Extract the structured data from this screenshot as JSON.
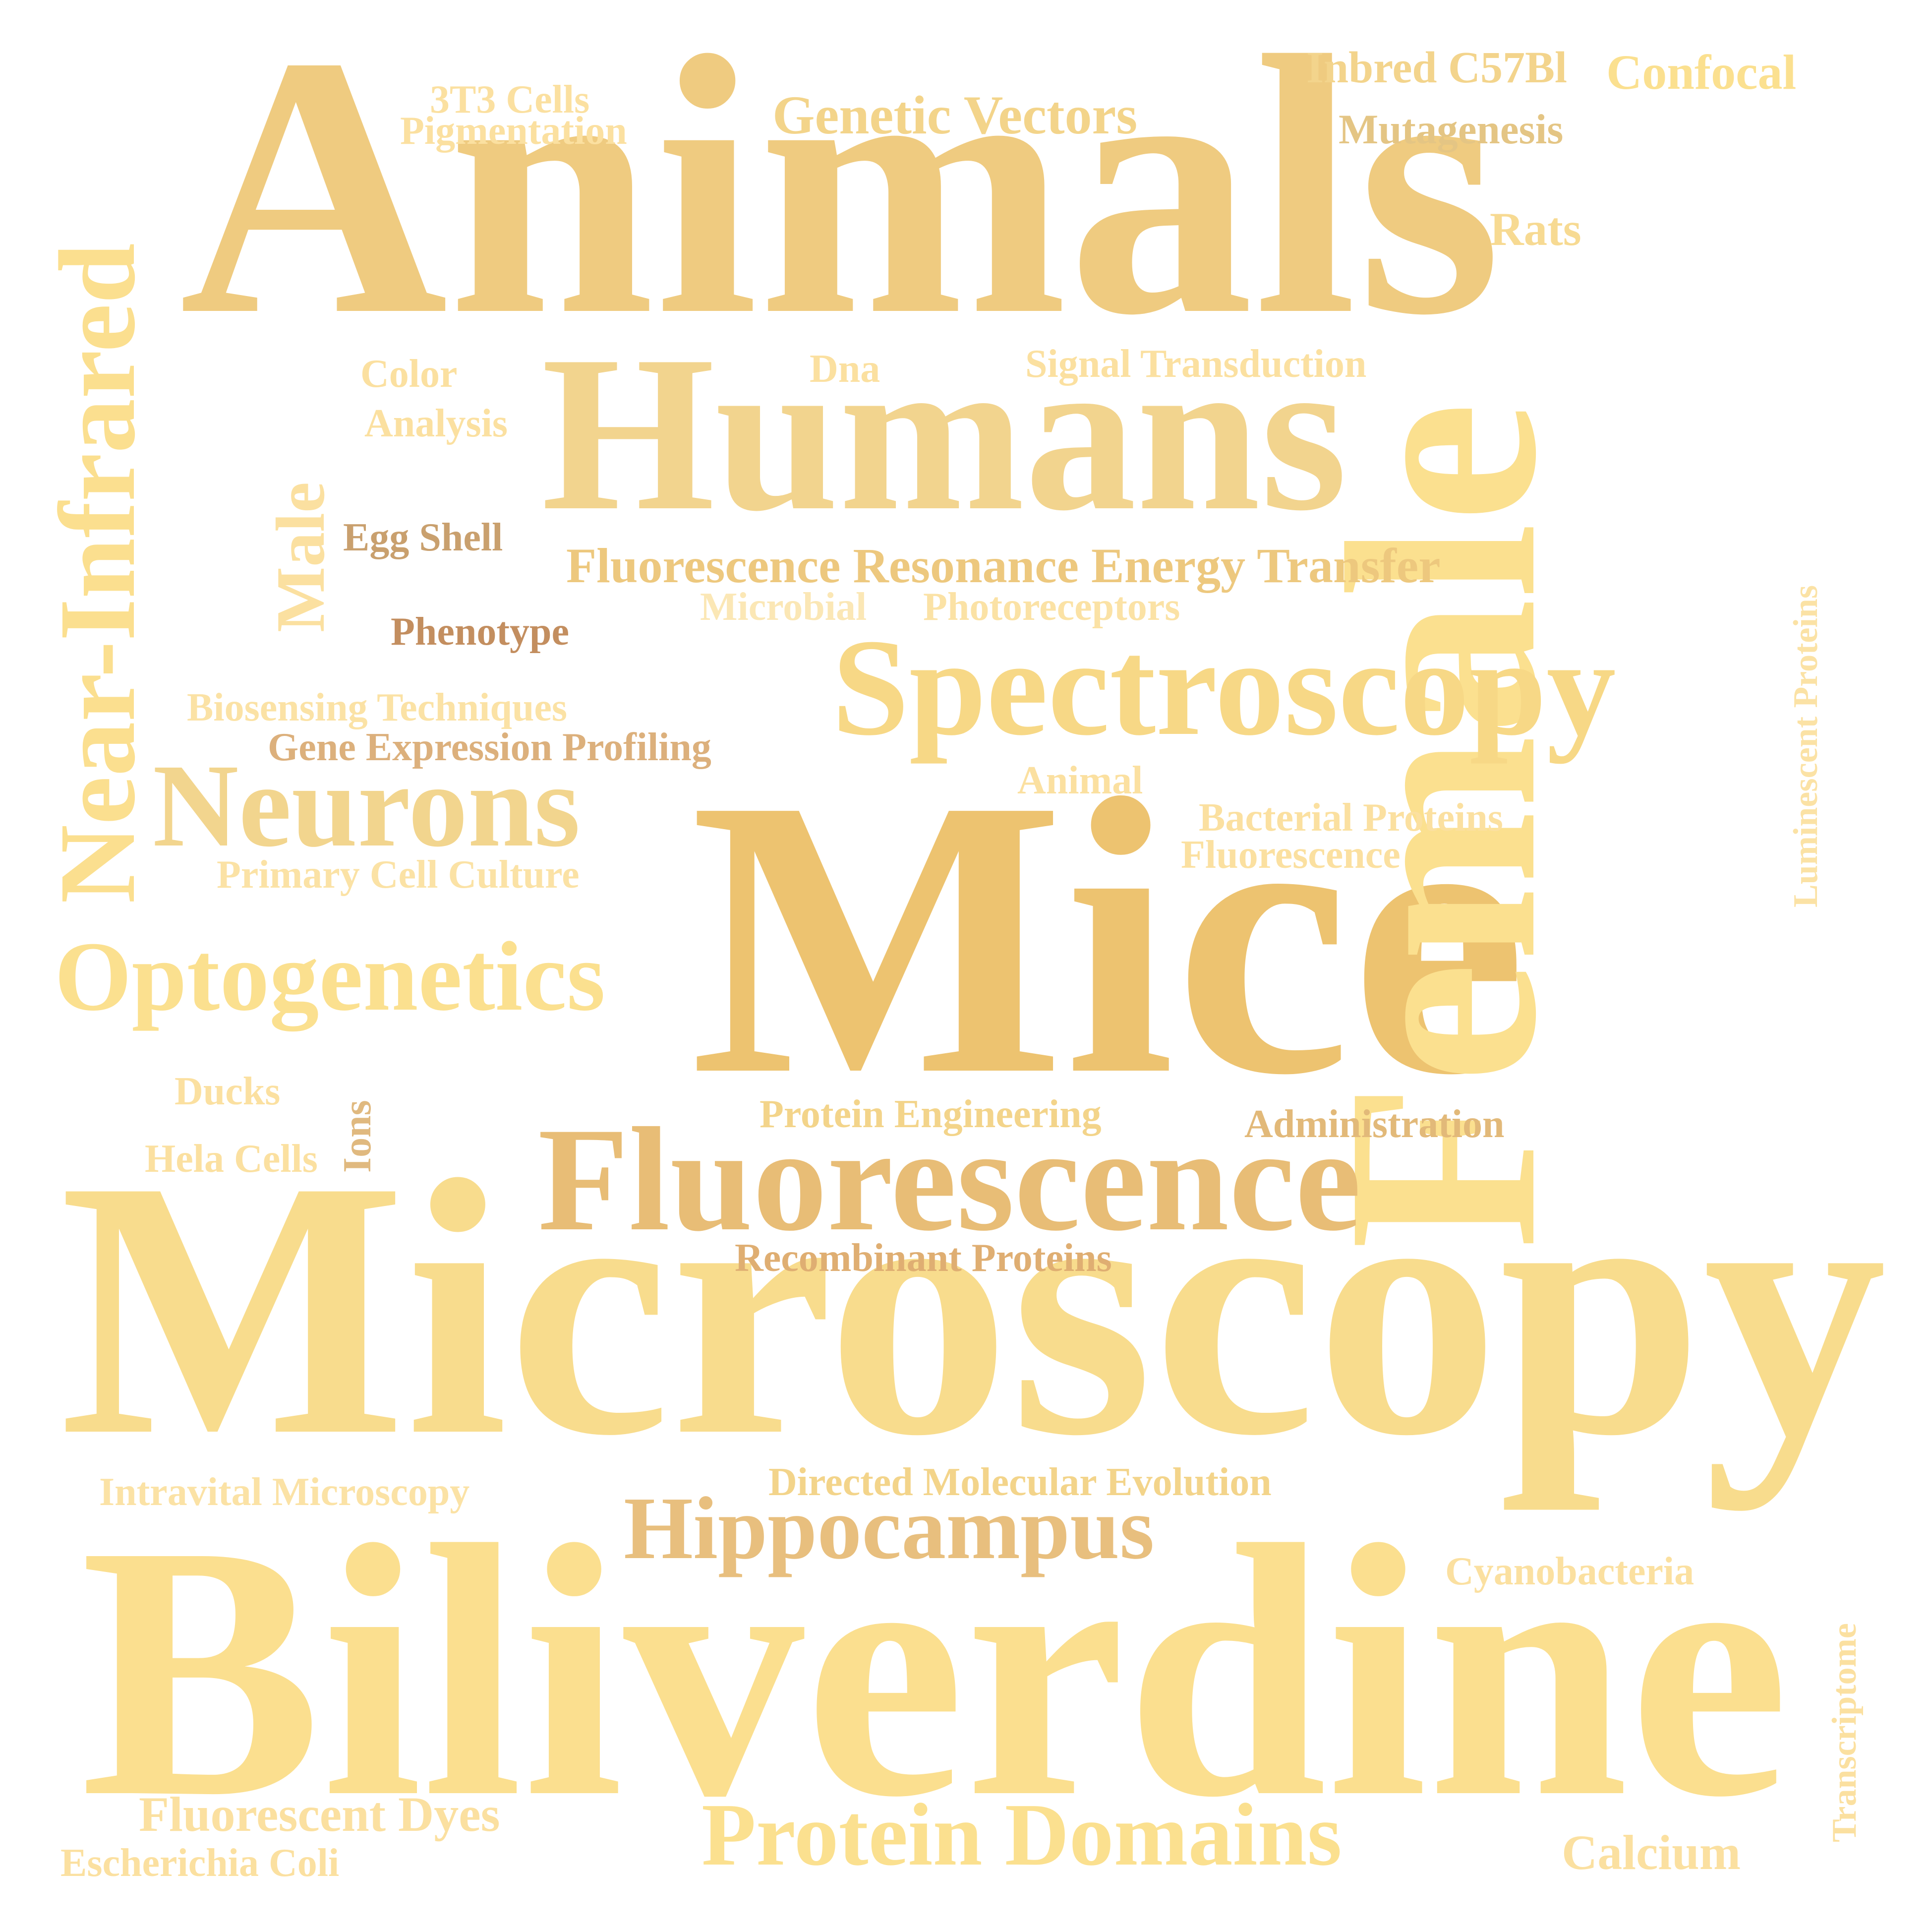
{
  "words": [
    {
      "id": "animals",
      "text": "Animals",
      "color": "#efcb80"
    },
    {
      "id": "humans",
      "text": "Humans",
      "color": "#f2d48e"
    },
    {
      "id": "mice",
      "text": "Mice",
      "color": "#edc370"
    },
    {
      "id": "microscopy",
      "text": "Microscopy",
      "color": "#f8dc8d"
    },
    {
      "id": "biliverdine",
      "text": "Biliverdine",
      "color": "#fbdf8f"
    },
    {
      "id": "female",
      "text": "Female",
      "color": "#fbe08f"
    },
    {
      "id": "fluorescence-large",
      "text": "Fluorescence",
      "color": "#e8bd76"
    },
    {
      "id": "spectroscopy",
      "text": "Spectroscopy",
      "color": "#f7d886"
    },
    {
      "id": "neurons",
      "text": "Neurons",
      "color": "#f2d58e"
    },
    {
      "id": "optogenetics",
      "text": "Optogenetics",
      "color": "#fbe08f"
    },
    {
      "id": "near-infrared",
      "text": "Near-Infrared",
      "color": "#fbdf8f"
    },
    {
      "id": "hippocampus",
      "text": "Hippocampus",
      "color": "#e8bf7e"
    },
    {
      "id": "protein-domains",
      "text": "Protein Domains",
      "color": "#fbe08f"
    },
    {
      "id": "genetic-vectors",
      "text": "Genetic Vectors",
      "color": "#f3d48a"
    },
    {
      "id": "fret",
      "text": "Fluorescence Resonance Energy Transfer",
      "color": "#edc87e"
    },
    {
      "id": "confocal",
      "text": "Confocal",
      "color": "#fbe08f"
    },
    {
      "id": "inbred-c57bl",
      "text": "Inbred C57Bl",
      "color": "#f3d48c"
    },
    {
      "id": "mutagenesis",
      "text": "Mutagenesis",
      "color": "#e4c584"
    },
    {
      "id": "rats",
      "text": "Rats",
      "color": "#f7da92"
    },
    {
      "id": "3t3-cells",
      "text": "3T3 Cells",
      "color": "#fbe0a0"
    },
    {
      "id": "pigmentation",
      "text": "Pigmentation",
      "color": "#fbe0a0"
    },
    {
      "id": "color",
      "text": "Color",
      "color": "#fbe0a0"
    },
    {
      "id": "analysis",
      "text": "Analysis",
      "color": "#fbe0a0"
    },
    {
      "id": "dna",
      "text": "Dna",
      "color": "#fbe0a0"
    },
    {
      "id": "signal-transduction",
      "text": "Signal Transduction",
      "color": "#fbe0a0"
    },
    {
      "id": "male",
      "text": "Male",
      "color": "#fbe0a0"
    },
    {
      "id": "egg-shell",
      "text": "Egg Shell",
      "color": "#c9a06e"
    },
    {
      "id": "phenotype",
      "text": "Phenotype",
      "color": "#c38e5f"
    },
    {
      "id": "microbial",
      "text": "Microbial",
      "color": "#fbe7b5"
    },
    {
      "id": "photoreceptors",
      "text": "Photoreceptors",
      "color": "#fbe2a5"
    },
    {
      "id": "biosensing-techniques",
      "text": "Biosensing Techniques",
      "color": "#fbe2a5"
    },
    {
      "id": "gene-expression-profiling",
      "text": "Gene Expression Profiling",
      "color": "#dcb07c"
    },
    {
      "id": "animal",
      "text": "Animal",
      "color": "#fbe0a0"
    },
    {
      "id": "bacterial-proteins",
      "text": "Bacterial Proteins",
      "color": "#fbe0a0"
    },
    {
      "id": "fluorescence-small",
      "text": "Fluorescence",
      "color": "#fbe0a0"
    },
    {
      "id": "luminescent-proteins",
      "text": "Luminescent Proteins",
      "color": "#fbe2a5"
    },
    {
      "id": "primary-cell-culture",
      "text": "Primary Cell Culture",
      "color": "#fbe2a5"
    },
    {
      "id": "ducks",
      "text": "Ducks",
      "color": "#fbe0a0"
    },
    {
      "id": "hela-cells",
      "text": "Hela Cells",
      "color": "#fbe0a0"
    },
    {
      "id": "ions",
      "text": "Ions",
      "color": "#e0b97f"
    },
    {
      "id": "protein-engineering",
      "text": "Protein Engineering",
      "color": "#f3d48a"
    },
    {
      "id": "administration",
      "text": "Administration",
      "color": "#e2b979"
    },
    {
      "id": "recombinant-proteins",
      "text": "Recombinant Proteins",
      "color": "#dfae72"
    },
    {
      "id": "intravital-microscopy",
      "text": "Intravital Microscopy",
      "color": "#fbe2a5"
    },
    {
      "id": "directed-molecular-evolution",
      "text": "Directed Molecular Evolution",
      "color": "#f3d48a"
    },
    {
      "id": "cyanobacteria",
      "text": "Cyanobacteria",
      "color": "#fbe0a0"
    },
    {
      "id": "transcriptome",
      "text": "Transcriptome",
      "color": "#fbe0a0"
    },
    {
      "id": "fluorescent-dyes",
      "text": "Fluorescent Dyes",
      "color": "#fbe0a0"
    },
    {
      "id": "escherichia-coli",
      "text": "Escherichia Coli",
      "color": "#fbe0a0"
    },
    {
      "id": "calcium",
      "text": "Calcium",
      "color": "#fbe0a0"
    }
  ]
}
